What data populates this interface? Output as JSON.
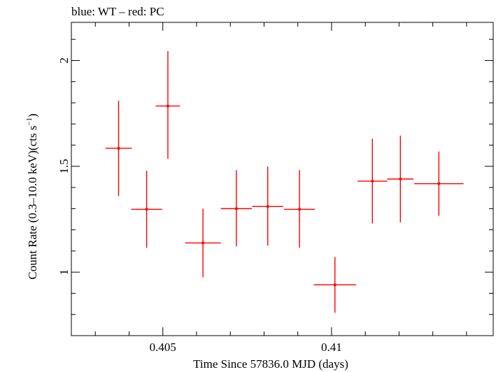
{
  "chart_data": {
    "type": "scatter",
    "title": "blue: WT – red: PC",
    "xlabel": "Time Since 57836.0 MJD (days)",
    "ylabel_main": "Count Rate (0.3–10.0 keV)(cts s",
    "ylabel_sup": "−1",
    "ylabel_tail": ")",
    "xlim": [
      0.40229,
      0.41479
    ],
    "ylim": [
      0.7,
      2.18
    ],
    "x_ticks": [
      0.405,
      0.41
    ],
    "x_tick_labels": [
      "0.405",
      "0.41"
    ],
    "y_ticks": [
      1,
      1.5,
      2
    ],
    "y_tick_labels": [
      "1",
      "1.5",
      "2"
    ],
    "x_minor_step": 0.001,
    "y_minor_step": 0.1,
    "grid": false,
    "series": [
      {
        "color": "#ff0000",
        "points": [
          {
            "x": 0.40369,
            "xerr": 0.00039,
            "y": 1.585,
            "yerr_lo": 0.225,
            "yerr_hi": 0.225
          },
          {
            "x": 0.40452,
            "xerr": 0.00046,
            "y": 1.297,
            "yerr_lo": 0.182,
            "yerr_hi": 0.182
          },
          {
            "x": 0.40515,
            "xerr": 0.00036,
            "y": 1.785,
            "yerr_lo": 0.25,
            "yerr_hi": 0.259
          },
          {
            "x": 0.40619,
            "xerr": 0.00053,
            "y": 1.138,
            "yerr_lo": 0.162,
            "yerr_hi": 0.162
          },
          {
            "x": 0.40718,
            "xerr": 0.00046,
            "y": 1.3,
            "yerr_lo": 0.178,
            "yerr_hi": 0.182
          },
          {
            "x": 0.40811,
            "xerr": 0.00046,
            "y": 1.31,
            "yerr_lo": 0.185,
            "yerr_hi": 0.188
          },
          {
            "x": 0.40905,
            "xerr": 0.00046,
            "y": 1.297,
            "yerr_lo": 0.182,
            "yerr_hi": 0.185
          },
          {
            "x": 0.4101,
            "xerr": 0.00063,
            "y": 0.94,
            "yerr_lo": 0.132,
            "yerr_hi": 0.132
          },
          {
            "x": 0.41121,
            "xerr": 0.00044,
            "y": 1.43,
            "yerr_lo": 0.2,
            "yerr_hi": 0.2
          },
          {
            "x": 0.41204,
            "xerr": 0.00039,
            "y": 1.44,
            "yerr_lo": 0.205,
            "yerr_hi": 0.205
          },
          {
            "x": 0.41318,
            "xerr": 0.00073,
            "y": 1.418,
            "yerr_lo": 0.152,
            "yerr_hi": 0.152
          }
        ]
      }
    ]
  }
}
